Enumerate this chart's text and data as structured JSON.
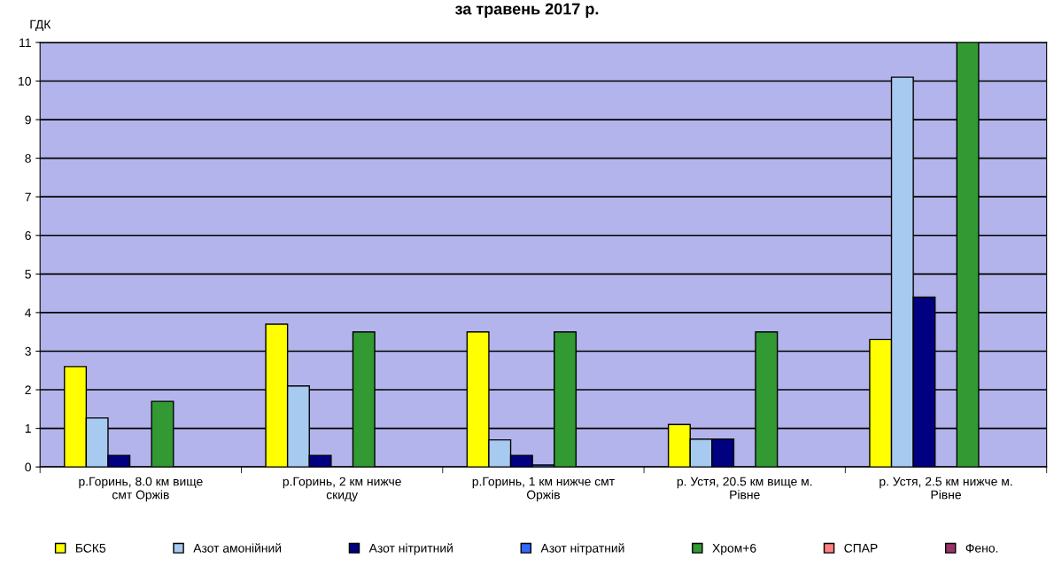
{
  "chart_data": {
    "type": "bar",
    "title": "за травень 2017 р.",
    "ylabel": "ГДК",
    "categories": [
      "р.Горинь, 8.0 км вище\nсмт Оржів",
      "р.Горинь, 2 км нижче\nскиду",
      "р.Горинь, 1 км нижче смт\nОржів",
      "р. Устя, 20.5 км вище м.\nРівне",
      "р. Устя, 2.5 км нижче м.\nРівне"
    ],
    "series": [
      {
        "name": "БСК5",
        "color": "#ffff00",
        "values": [
          2.6,
          3.7,
          3.5,
          1.1,
          3.3
        ]
      },
      {
        "name": "Азот амонійний",
        "color": "#a6caf0",
        "values": [
          1.27,
          2.1,
          0.7,
          0.72,
          10.1
        ]
      },
      {
        "name": "Азот нітритний",
        "color": "#000080",
        "values": [
          0.3,
          0.3,
          0.3,
          0.72,
          4.4
        ]
      },
      {
        "name": "Азот нітратний",
        "color": "#3366ff",
        "values": [
          null,
          null,
          0.05,
          null,
          null
        ]
      },
      {
        "name": "Хром+6",
        "color": "#339933",
        "values": [
          1.7,
          3.5,
          3.5,
          3.5,
          11
        ]
      },
      {
        "name": "СПАР",
        "color": "#ff8080",
        "values": [
          null,
          null,
          null,
          null,
          null
        ]
      },
      {
        "name": "Фено.",
        "color": "#993366",
        "values": [
          null,
          null,
          null,
          null,
          null
        ]
      }
    ],
    "ylim": [
      0,
      11
    ],
    "yticks": [
      0,
      1,
      2,
      3,
      4,
      5,
      6,
      7,
      8,
      9,
      10,
      11
    ],
    "grid": "y",
    "legend": "bottom"
  }
}
